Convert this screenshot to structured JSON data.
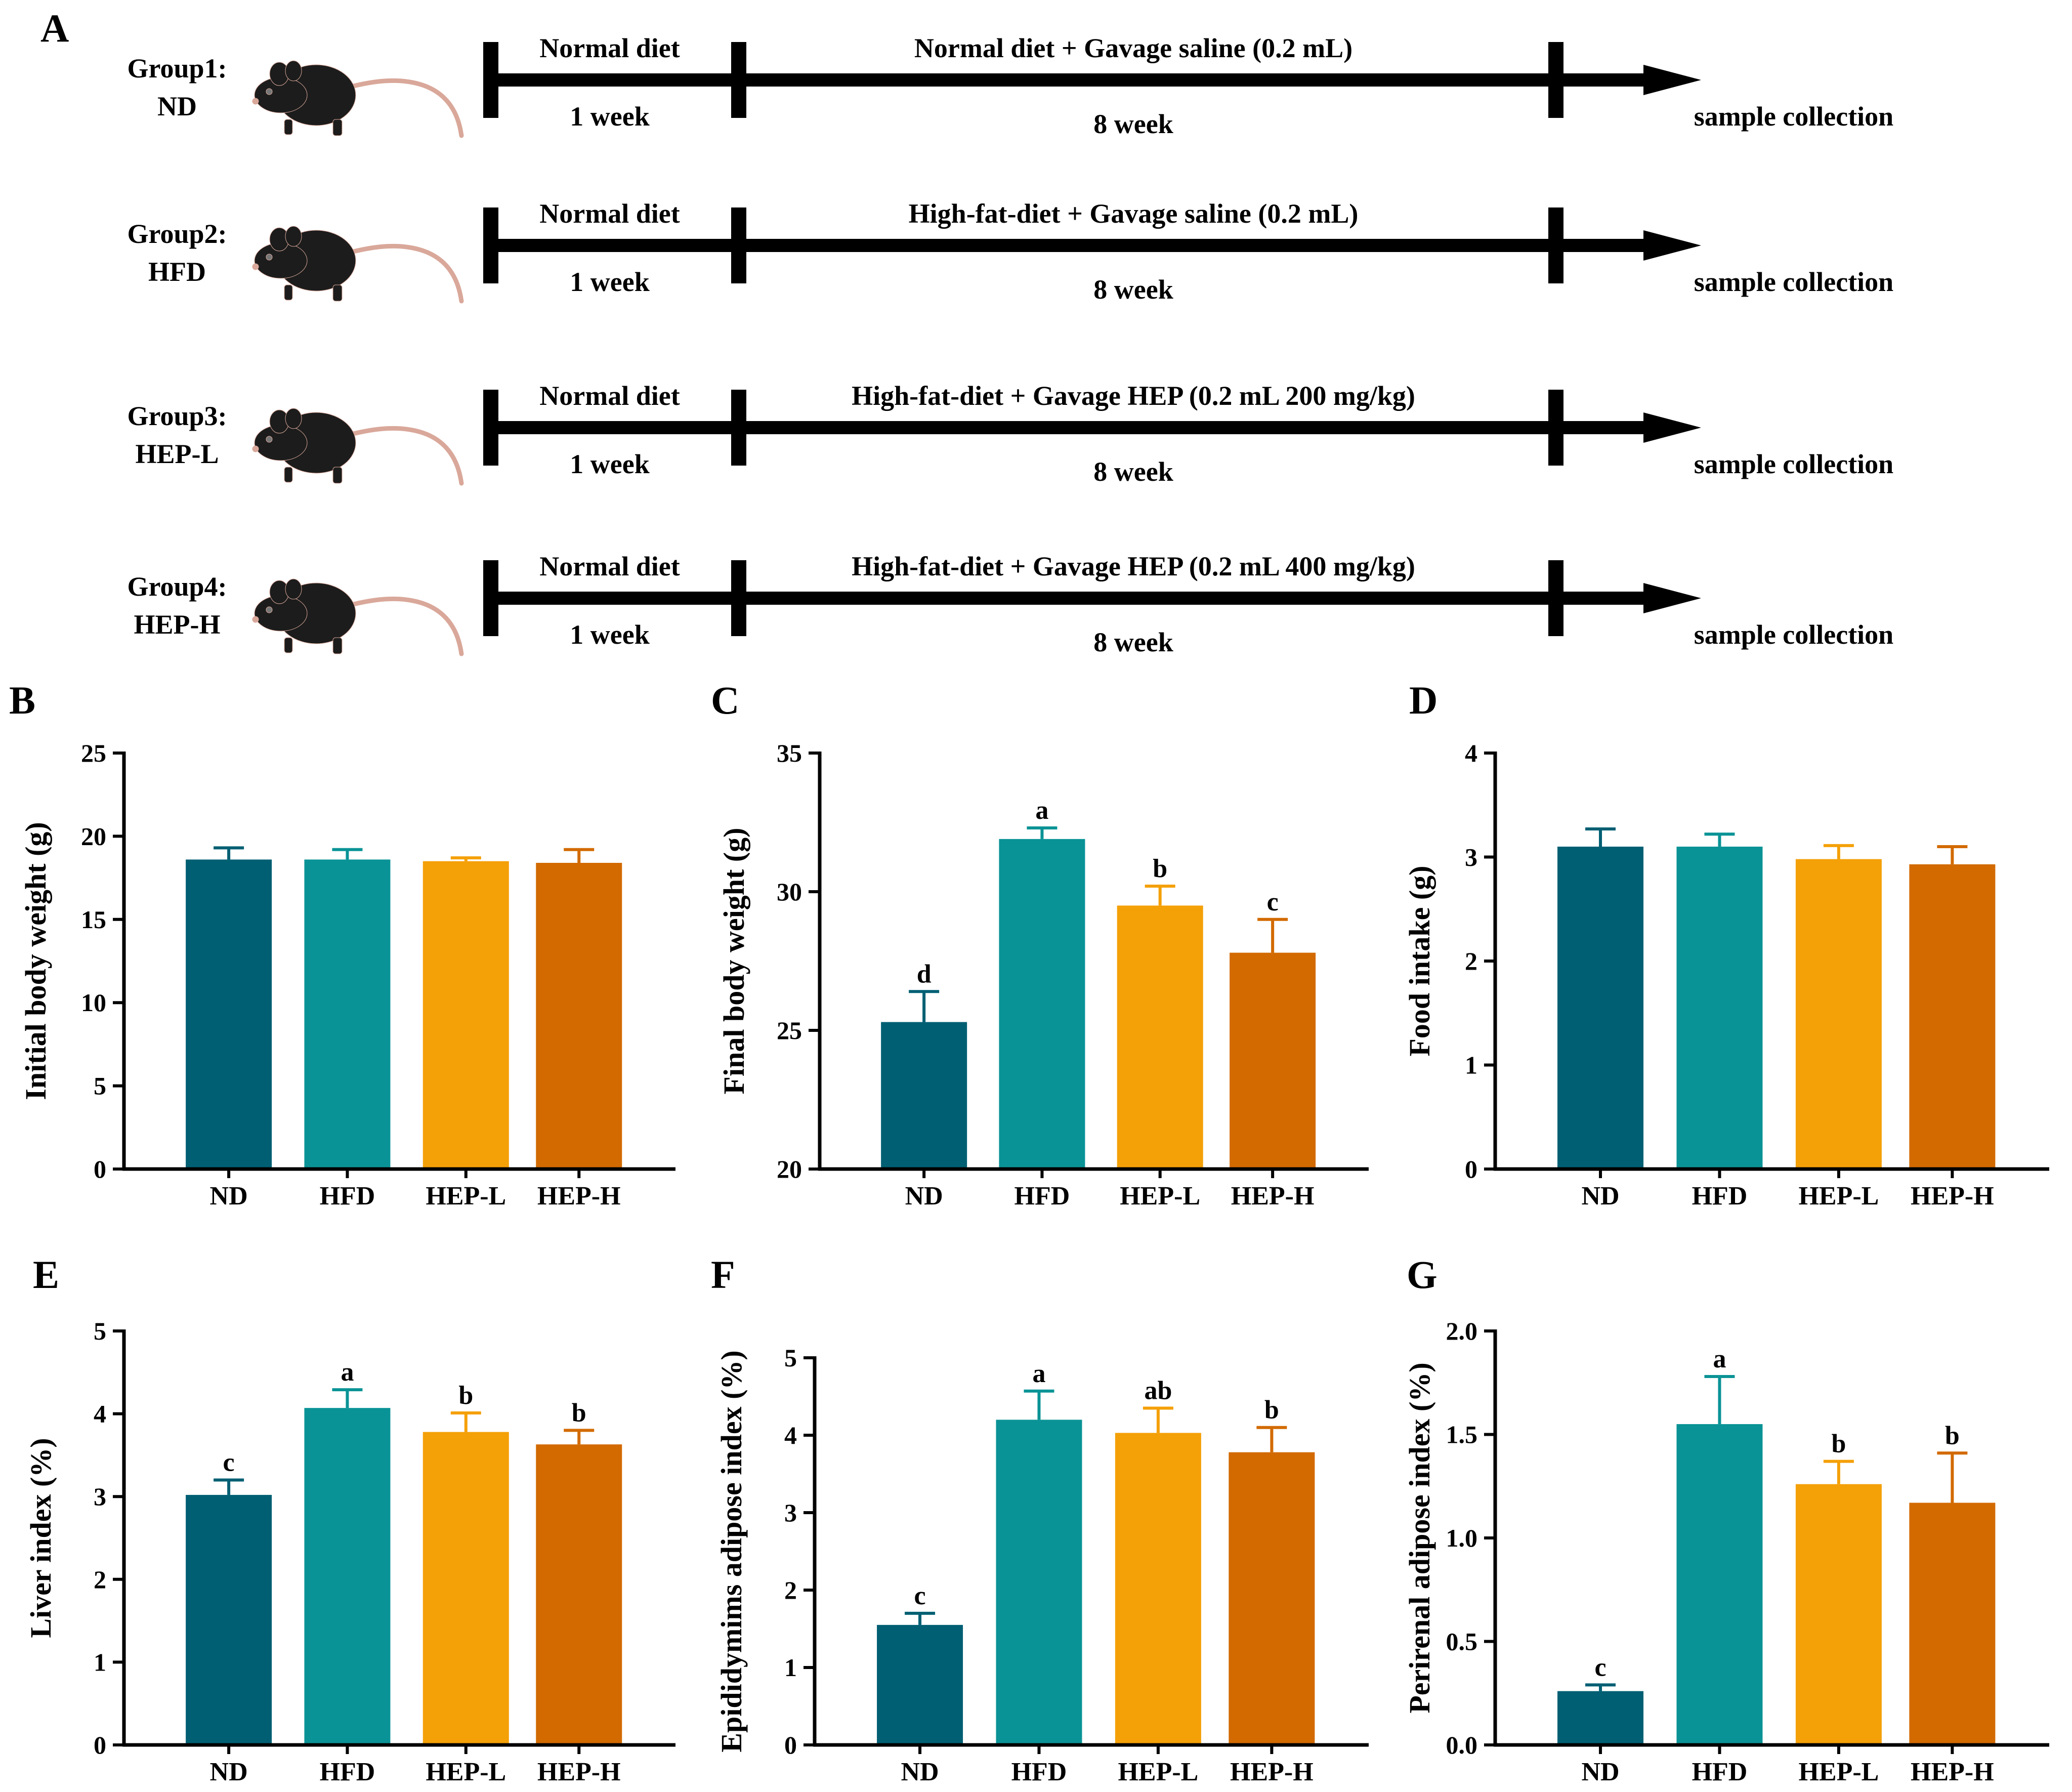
{
  "panel_a": {
    "letter": "A",
    "end_label": "sample collection",
    "groups": [
      {
        "name": "Group1:",
        "code": "ND",
        "phase1": "Normal diet",
        "phase1_dur": "1 week",
        "phase2": "Normal diet + Gavage saline (0.2 mL)",
        "phase2_dur": "8 week"
      },
      {
        "name": "Group2:",
        "code": "HFD",
        "phase1": "Normal diet",
        "phase1_dur": "1 week",
        "phase2": "High-fat-diet + Gavage saline (0.2 mL)",
        "phase2_dur": "8 week"
      },
      {
        "name": "Group3:",
        "code": "HEP-L",
        "phase1": "Normal diet",
        "phase1_dur": "1 week",
        "phase2": "High-fat-diet + Gavage HEP (0.2 mL 200 mg/kg)",
        "phase2_dur": "8 week"
      },
      {
        "name": "Group4:",
        "code": "HEP-H",
        "phase1": "Normal diet",
        "phase1_dur": "1 week",
        "phase2": "High-fat-diet + Gavage HEP (0.2 mL 400 mg/kg)",
        "phase2_dur": "8 week"
      }
    ]
  },
  "colors": {
    "ND": "#005f73",
    "HFD": "#0a9396",
    "HEP-L": "#f4a007",
    "HEP-H": "#d26a00",
    "mouse": "#1c1c1c",
    "tail": "#d9a89a"
  },
  "chart_data": [
    {
      "panel": "B",
      "type": "bar",
      "ylabel": "Initial body weight (g)",
      "categories": [
        "ND",
        "HFD",
        "HEP-L",
        "HEP-H"
      ],
      "values": [
        18.6,
        18.6,
        18.5,
        18.4
      ],
      "errors": [
        0.7,
        0.6,
        0.2,
        0.8
      ],
      "sig": [
        "",
        "",
        "",
        ""
      ],
      "ylim": [
        0,
        25
      ],
      "yticks": [
        0,
        5,
        10,
        15,
        20,
        25
      ],
      "ytick_labels": [
        "0",
        "5",
        "10",
        "15",
        "20",
        "25"
      ]
    },
    {
      "panel": "C",
      "type": "bar",
      "ylabel": "Final body weight (g)",
      "categories": [
        "ND",
        "HFD",
        "HEP-L",
        "HEP-H"
      ],
      "values": [
        25.3,
        31.9,
        29.5,
        27.8
      ],
      "errors": [
        1.1,
        0.4,
        0.7,
        1.2
      ],
      "sig": [
        "d",
        "a",
        "b",
        "c"
      ],
      "ylim": [
        20,
        35
      ],
      "yticks": [
        20,
        25,
        30,
        35
      ],
      "ytick_labels": [
        "20",
        "25",
        "30",
        "35"
      ]
    },
    {
      "panel": "D",
      "type": "bar",
      "ylabel": "Food intake (g)",
      "categories": [
        "ND",
        "HFD",
        "HEP-L",
        "HEP-H"
      ],
      "values": [
        3.1,
        3.1,
        2.98,
        2.93
      ],
      "errors": [
        0.17,
        0.12,
        0.13,
        0.17
      ],
      "sig": [
        "",
        "",
        "",
        ""
      ],
      "ylim": [
        0,
        4
      ],
      "yticks": [
        0,
        1,
        2,
        3,
        4
      ],
      "ytick_labels": [
        "0",
        "1",
        "2",
        "3",
        "4"
      ]
    },
    {
      "panel": "E",
      "type": "bar",
      "ylabel": "Liver index (%)",
      "categories": [
        "ND",
        "HFD",
        "HEP-L",
        "HEP-H"
      ],
      "values": [
        3.02,
        4.07,
        3.78,
        3.63
      ],
      "errors": [
        0.18,
        0.22,
        0.23,
        0.17
      ],
      "sig": [
        "c",
        "a",
        "b",
        "b"
      ],
      "ylim": [
        0,
        5
      ],
      "yticks": [
        0,
        1,
        2,
        3,
        4,
        5
      ],
      "ytick_labels": [
        "0",
        "1",
        "2",
        "3",
        "4",
        "5"
      ]
    },
    {
      "panel": "F",
      "type": "bar",
      "ylabel": "Epididymims adipose index (%)",
      "categories": [
        "ND",
        "HFD",
        "HEP-L",
        "HEP-H"
      ],
      "values": [
        1.55,
        4.2,
        4.03,
        3.78
      ],
      "errors": [
        0.15,
        0.37,
        0.32,
        0.32
      ],
      "sig": [
        "c",
        "a",
        "ab",
        "b"
      ],
      "ylim": [
        0,
        5
      ],
      "yticks": [
        0,
        1,
        2,
        3,
        4,
        5
      ],
      "ytick_labels": [
        "0",
        "1",
        "2",
        "3",
        "4",
        "5"
      ]
    },
    {
      "panel": "G",
      "type": "bar",
      "ylabel": "Perirenal adipose index (%)",
      "categories": [
        "ND",
        "HFD",
        "HEP-L",
        "HEP-H"
      ],
      "values": [
        0.26,
        1.55,
        1.26,
        1.17
      ],
      "errors": [
        0.03,
        0.23,
        0.11,
        0.24
      ],
      "sig": [
        "c",
        "a",
        "b",
        "b"
      ],
      "ylim": [
        0,
        2
      ],
      "yticks": [
        0,
        0.5,
        1,
        1.5,
        2
      ],
      "ytick_labels": [
        "0.0",
        "0.5",
        "1.0",
        "1.5",
        "2.0"
      ]
    }
  ]
}
